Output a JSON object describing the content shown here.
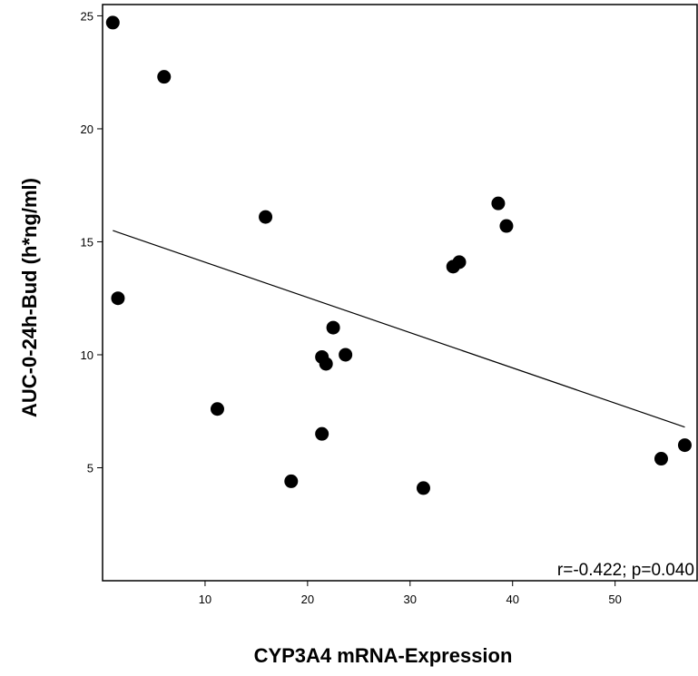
{
  "chart_data": {
    "type": "scatter",
    "title": "",
    "xlabel": "CYP3A4 mRNA-Expression",
    "ylabel": "AUC-0-24h-Bud (h*ng/ml)",
    "xlim": [
      0,
      58
    ],
    "ylim": [
      0,
      25.5
    ],
    "xticks": [
      10,
      20,
      30,
      40,
      50
    ],
    "yticks": [
      5,
      10,
      15,
      20,
      25
    ],
    "grid": false,
    "points": [
      {
        "x": 1.0,
        "y": 24.7
      },
      {
        "x": 6.0,
        "y": 22.3
      },
      {
        "x": 1.5,
        "y": 12.5
      },
      {
        "x": 11.2,
        "y": 7.6
      },
      {
        "x": 15.9,
        "y": 16.1
      },
      {
        "x": 18.4,
        "y": 4.4
      },
      {
        "x": 21.4,
        "y": 6.5
      },
      {
        "x": 21.4,
        "y": 9.9
      },
      {
        "x": 21.8,
        "y": 9.6
      },
      {
        "x": 22.5,
        "y": 11.2
      },
      {
        "x": 23.7,
        "y": 10.0
      },
      {
        "x": 31.3,
        "y": 4.1
      },
      {
        "x": 34.2,
        "y": 13.9
      },
      {
        "x": 34.8,
        "y": 14.1
      },
      {
        "x": 38.6,
        "y": 16.7
      },
      {
        "x": 39.4,
        "y": 15.7
      },
      {
        "x": 54.5,
        "y": 5.4
      },
      {
        "x": 56.8,
        "y": 6.0
      }
    ],
    "fit_line": {
      "x": [
        1.0,
        56.8
      ],
      "y": [
        15.5,
        6.8
      ]
    },
    "annotation": "r=-0.422; p=0.040",
    "marker_color": "#000000"
  }
}
